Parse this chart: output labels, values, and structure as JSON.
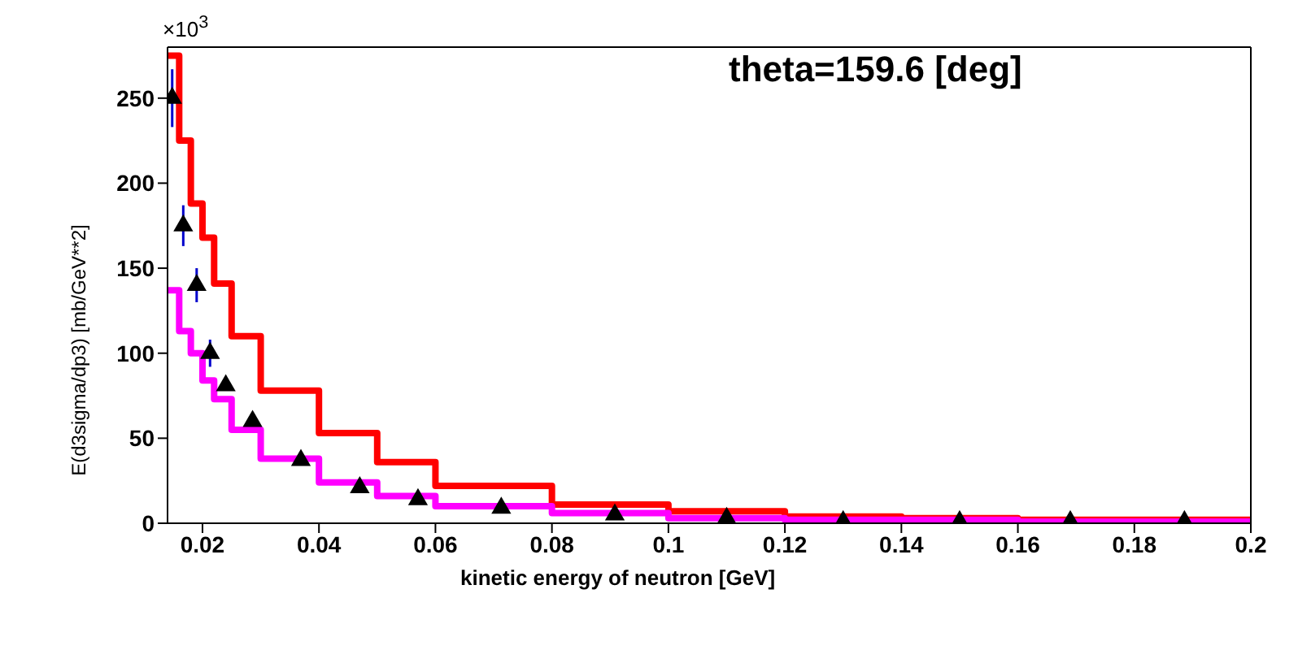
{
  "chart_data": {
    "type": "histogram",
    "xlabel": "kinetic energy of neutron [GeV]",
    "ylabel": "E(d3sigma/dp3) [mb/GeV**2]",
    "annotations": [
      "theta=159.6 [deg]",
      "×10$^{3}$"
    ],
    "bins": [
      0.014,
      0.016,
      0.018,
      0.02,
      0.022,
      0.025,
      0.03,
      0.04,
      0.05,
      0.06,
      0.08,
      0.1,
      0.12,
      0.14,
      0.16,
      0.18,
      0.2
    ],
    "xlim": [
      0.014,
      0.2
    ],
    "xticks": [
      0.02,
      0.04,
      0.06,
      0.08,
      0.1,
      0.12,
      0.14,
      0.16,
      0.18,
      0.2
    ],
    "ylim": [
      0,
      280
    ],
    "yticks": [
      0,
      50,
      100,
      150,
      200,
      250
    ],
    "grid": false,
    "legend": false,
    "series": [
      {
        "color": "#ff0000",
        "values": [
          275,
          225,
          188,
          168,
          141,
          110,
          78,
          53,
          36,
          22,
          11,
          7,
          4,
          3,
          2,
          2
        ]
      },
      {
        "color": "#ff00ff",
        "values": [
          137,
          113,
          100,
          84,
          73,
          55,
          38,
          24,
          16,
          10,
          6,
          3,
          2,
          2,
          1,
          1
        ]
      },
      {
        "type": "scatter",
        "color": "#000000",
        "marker": "triangle",
        "x": [
          0.0148,
          0.0167,
          0.019,
          0.0213,
          0.024,
          0.0286,
          0.0369,
          0.047,
          0.057,
          0.0713,
          0.0908,
          0.11,
          0.13,
          0.15,
          0.169,
          0.1886
        ],
        "values": [
          250,
          175,
          140,
          100,
          81,
          60,
          37,
          21,
          14,
          9,
          5,
          3,
          1,
          1,
          1,
          1
        ],
        "errors": [
          17,
          12,
          10,
          8,
          null,
          null,
          null,
          null,
          null,
          null,
          null,
          null,
          null,
          null,
          null,
          null
        ]
      }
    ]
  }
}
